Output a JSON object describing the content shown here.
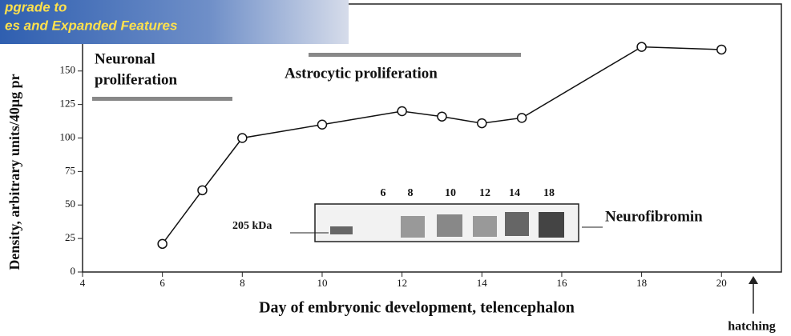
{
  "chart_data": {
    "type": "line",
    "x_label": "Day of embryonic development, telencephalon",
    "y_label": "Density, arbitrary units/40μg pr",
    "x": [
      6,
      7,
      8,
      10,
      12,
      13,
      14,
      15,
      18,
      20
    ],
    "values": [
      21,
      61,
      100,
      110,
      120,
      116,
      111,
      115,
      168,
      166
    ],
    "color": "#111111",
    "xlim": [
      4,
      21.5
    ],
    "xticks": [
      4,
      6,
      8,
      10,
      12,
      14,
      16,
      18,
      20
    ],
    "ylim": [
      0,
      200
    ],
    "yticks": [
      0,
      25,
      50,
      75,
      100,
      125,
      150
    ],
    "grid": false,
    "annotations": {
      "neuronal_1": "Neuronal",
      "neuronal_2": "proliferation",
      "astrocytic": "Astrocytic proliferation",
      "marker": "205 kDa",
      "protein": "Neurofibromin",
      "hatching": "hatching",
      "blot_lanes": [
        "6",
        "8",
        "10",
        "12",
        "14",
        "18"
      ]
    }
  },
  "banner": {
    "line1": "pgrade to",
    "line2": "es and Expanded Features"
  }
}
